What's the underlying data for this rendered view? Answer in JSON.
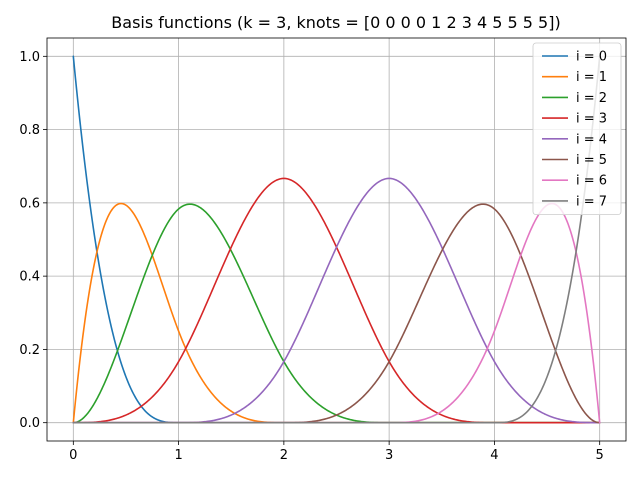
{
  "chart_data": {
    "type": "line",
    "title": "Basis functions (k = 3, knots = [0 0 0 0 1 2 3 4 5 5 5 5])",
    "xlabel": "",
    "ylabel": "",
    "xlim": [
      -0.25,
      5.25
    ],
    "ylim": [
      -0.05,
      1.05
    ],
    "xticks": [
      0,
      1,
      2,
      3,
      4,
      5
    ],
    "xtick_labels": [
      "0",
      "1",
      "2",
      "3",
      "4",
      "5"
    ],
    "yticks": [
      0.0,
      0.2,
      0.4,
      0.6,
      0.8,
      1.0
    ],
    "ytick_labels": [
      "0.0",
      "0.2",
      "0.4",
      "0.6",
      "0.8",
      "1.0"
    ],
    "grid": true,
    "legend_position": "top-right",
    "degree": 3,
    "knots": [
      0,
      0,
      0,
      0,
      1,
      2,
      3,
      4,
      5,
      5,
      5,
      5
    ],
    "x": [
      0,
      0.25,
      0.5,
      0.75,
      1,
      1.25,
      1.5,
      1.75,
      2,
      2.25,
      2.5,
      2.75,
      3,
      3.25,
      3.5,
      3.75,
      4,
      4.25,
      4.5,
      4.75,
      5
    ],
    "series": [
      {
        "name": "i = 0",
        "color": "#1f77b4",
        "values": [
          1,
          0.4219,
          0.125,
          0.0156,
          0,
          0,
          0,
          0,
          0,
          0,
          0,
          0,
          0,
          0,
          0,
          0,
          0,
          0,
          0,
          0,
          0
        ]
      },
      {
        "name": "i = 1",
        "color": "#ff7f0e",
        "values": [
          0,
          0.4922,
          0.5938,
          0.4453,
          0.25,
          0.1055,
          0.0313,
          0.0039,
          0,
          0,
          0,
          0,
          0,
          0,
          0,
          0,
          0,
          0,
          0,
          0,
          0
        ]
      },
      {
        "name": "i = 2",
        "color": "#2ca02c",
        "values": [
          0,
          0.0833,
          0.2708,
          0.4844,
          0.5833,
          0.5664,
          0.4583,
          0.306,
          0.1667,
          0.0703,
          0.0208,
          0.0026,
          0,
          0,
          0,
          0,
          0,
          0,
          0,
          0,
          0
        ]
      },
      {
        "name": "i = 3",
        "color": "#d62728",
        "values": [
          0,
          0.0026,
          0.0208,
          0.0703,
          0.1667,
          0.3151,
          0.4792,
          0.6198,
          0.6667,
          0.6198,
          0.4792,
          0.3151,
          0.1667,
          0.0703,
          0.0208,
          0.0026,
          0,
          0,
          0,
          0,
          0
        ]
      },
      {
        "name": "i = 4",
        "color": "#9467bd",
        "values": [
          0,
          0,
          0,
          0,
          0,
          0.0026,
          0.0208,
          0.0703,
          0.1667,
          0.3151,
          0.4792,
          0.6198,
          0.6667,
          0.6198,
          0.4792,
          0.3151,
          0.1667,
          0.0703,
          0.0208,
          0.0026,
          0
        ]
      },
      {
        "name": "i = 5",
        "color": "#8c564b",
        "values": [
          0,
          0,
          0,
          0,
          0,
          0,
          0,
          0,
          0,
          0.0026,
          0.0208,
          0.0703,
          0.1667,
          0.306,
          0.4583,
          0.5664,
          0.5833,
          0.4844,
          0.2708,
          0.0833,
          0
        ]
      },
      {
        "name": "i = 6",
        "color": "#e377c2",
        "values": [
          0,
          0,
          0,
          0,
          0,
          0,
          0,
          0,
          0,
          0,
          0,
          0,
          0,
          0.0039,
          0.0313,
          0.1055,
          0.25,
          0.4453,
          0.5938,
          0.4922,
          0
        ]
      },
      {
        "name": "i = 7",
        "color": "#7f7f7f",
        "values": [
          0,
          0,
          0,
          0,
          0,
          0,
          0,
          0,
          0,
          0,
          0,
          0,
          0,
          0,
          0,
          0,
          0,
          0.0156,
          0.125,
          0.4219,
          1
        ]
      }
    ]
  }
}
